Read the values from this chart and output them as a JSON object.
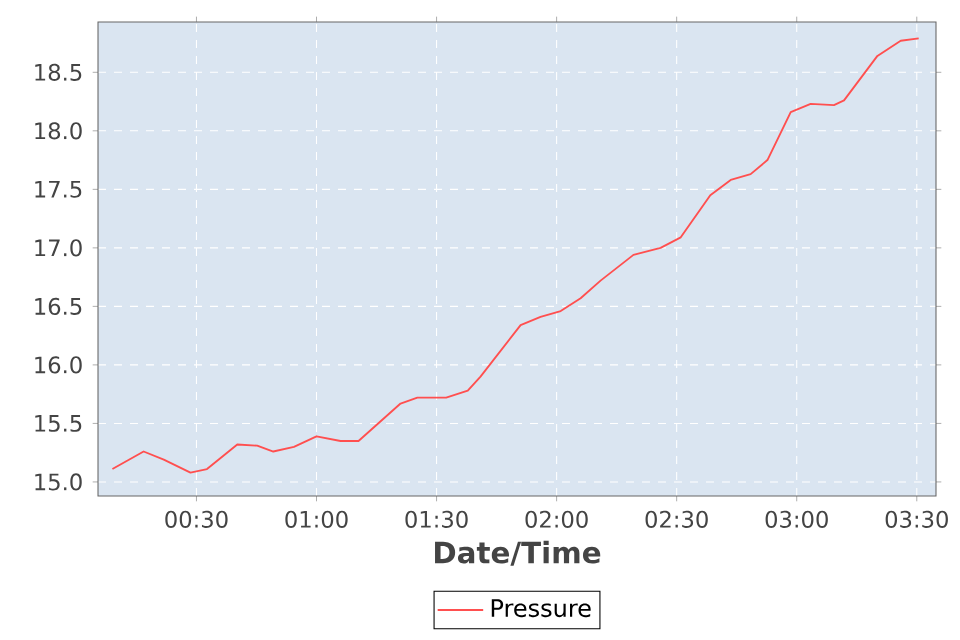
{
  "chart_data": {
    "type": "line",
    "xlabel": "Date/Time",
    "x": [
      0.15,
      0.28,
      0.364,
      0.475,
      0.544,
      0.67,
      0.753,
      0.82,
      0.906,
      1.0,
      1.1,
      1.175,
      1.35,
      1.42,
      1.54,
      1.63,
      1.683,
      1.85,
      1.933,
      2.017,
      2.1,
      2.183,
      2.32,
      2.433,
      2.517,
      2.64,
      2.725,
      2.808,
      2.878,
      2.975,
      3.058,
      3.155,
      3.197,
      3.336,
      3.433,
      3.508
    ],
    "series": [
      {
        "name": "Pressure",
        "color": "#ff4f4f",
        "values": [
          15.11,
          15.26,
          15.19,
          15.08,
          15.11,
          15.32,
          15.31,
          15.26,
          15.3,
          15.39,
          15.35,
          15.35,
          15.67,
          15.72,
          15.72,
          15.78,
          15.9,
          16.34,
          16.41,
          16.46,
          16.57,
          16.72,
          16.94,
          17.0,
          17.09,
          17.45,
          17.58,
          17.63,
          17.75,
          18.16,
          18.23,
          18.22,
          18.26,
          18.64,
          18.77,
          18.79
        ]
      }
    ],
    "xlim": [
      0.09,
      3.58
    ],
    "ylim": [
      14.88,
      18.93
    ],
    "xticks": [
      {
        "value": 0.5,
        "label": "00:30"
      },
      {
        "value": 1,
        "label": "01:00"
      },
      {
        "value": 1.5,
        "label": "01:30"
      },
      {
        "value": 2,
        "label": "02:00"
      },
      {
        "value": 2.5,
        "label": "02:30"
      },
      {
        "value": 3,
        "label": "03:00"
      },
      {
        "value": 3.5,
        "label": "03:30"
      }
    ],
    "yticks": [
      {
        "value": 15,
        "label": "15.0"
      },
      {
        "value": 15.5,
        "label": "15.5"
      },
      {
        "value": 16,
        "label": "16.0"
      },
      {
        "value": 16.5,
        "label": "16.5"
      },
      {
        "value": 17,
        "label": "17.0"
      },
      {
        "value": 17.5,
        "label": "17.5"
      },
      {
        "value": 18,
        "label": "18.0"
      },
      {
        "value": 18.5,
        "label": "18.5"
      }
    ],
    "grid": true,
    "legend": "bottom"
  }
}
